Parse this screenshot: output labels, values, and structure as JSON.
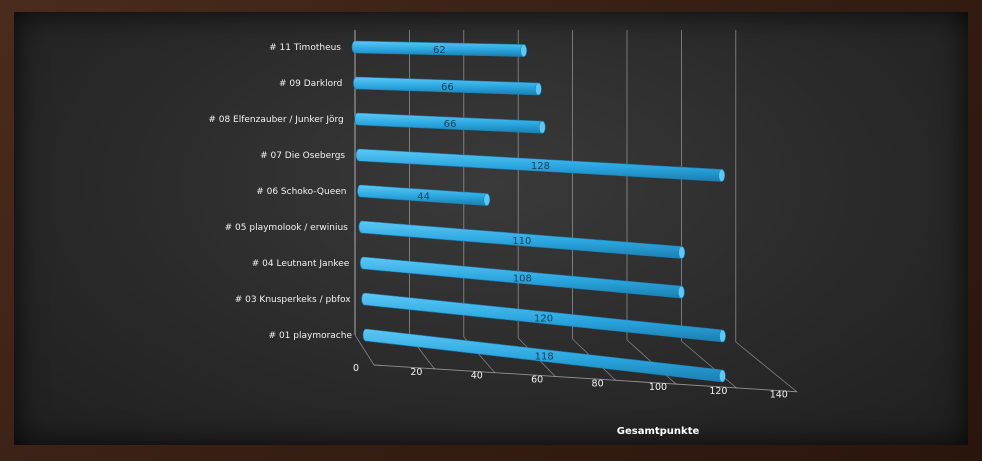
{
  "chart_data": {
    "type": "bar",
    "orientation": "horizontal",
    "categories": [
      "# 11 Timotheus",
      "# 09 Darklord",
      "# 08 Elfenzauber / Junker Jörg",
      "# 07 Die Osebergs",
      "# 06 Schoko-Queen",
      "# 05 playmolook / erwinius",
      "# 04 Leutnant Jankee",
      "# 03 Knusperkeks / pbfox",
      "# 01 playmorache"
    ],
    "values": [
      62,
      66,
      66,
      128,
      44,
      110,
      108,
      120,
      118
    ],
    "xlabel": "Gesamtpunkte",
    "ylabel": "",
    "xlim": [
      0,
      140
    ],
    "xticks": [
      0,
      20,
      40,
      60,
      80,
      100,
      120,
      140
    ],
    "grid": true,
    "colors": {
      "bar": "#2aa6e0",
      "bar_light": "#5cc8f5",
      "bar_dark": "#1b7fb0"
    }
  }
}
